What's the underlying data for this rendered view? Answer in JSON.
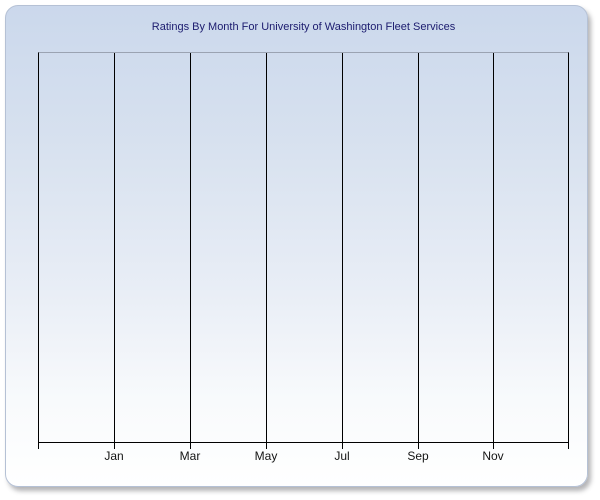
{
  "panel": {
    "border_color": "#b5c1d5",
    "background_top": "#cbd8ec",
    "background_bottom": "#ffffff"
  },
  "chart_data": {
    "type": "line",
    "title": "Ratings By Month For University of Washington Fleet Services",
    "title_color": "#1b1b6e",
    "x_axis": {
      "tick_labels": [
        "Jan",
        "Mar",
        "May",
        "Jul",
        "Sep",
        "Nov"
      ],
      "gridline_spacing": "every 2 months"
    },
    "y_axis": {
      "tick_labels": []
    },
    "series": [],
    "note": "empty plot area - no data points rendered",
    "grid": "vertical",
    "legend": "none",
    "axis_color": "#000000",
    "gridline_color": "#000000",
    "plot_top_border_color": "#9ba3b2"
  }
}
